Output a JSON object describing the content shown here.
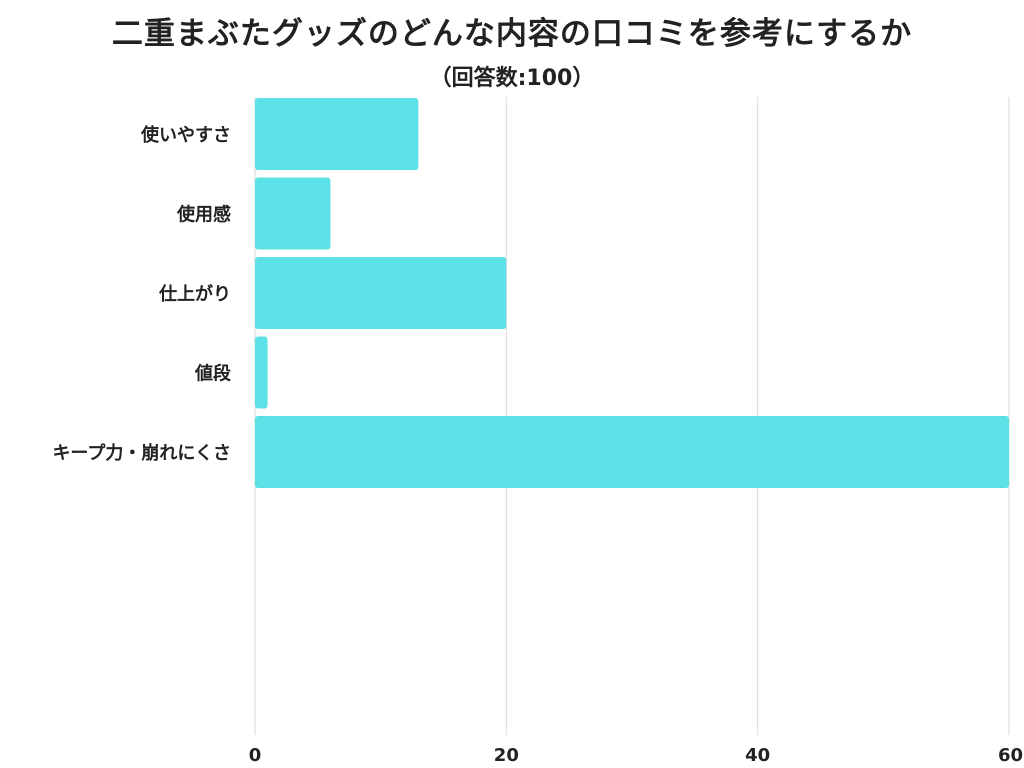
{
  "chart_data": {
    "type": "bar",
    "orientation": "horizontal",
    "title": "二重まぶたグッズのどんな内容の口コミを参考にするか",
    "subtitle": "（回答数:100）",
    "categories": [
      "使いやすさ",
      "使用感",
      "仕上がり",
      "値段",
      "キープ力・崩れにくさ"
    ],
    "values": [
      13,
      6,
      20,
      1,
      60
    ],
    "xlim": [
      0,
      60
    ],
    "xticks": [
      0,
      20,
      40,
      60
    ],
    "grid": true,
    "legend": "none",
    "bar_color": "#5ce1e6",
    "grid_color": "#d9d9d9"
  }
}
